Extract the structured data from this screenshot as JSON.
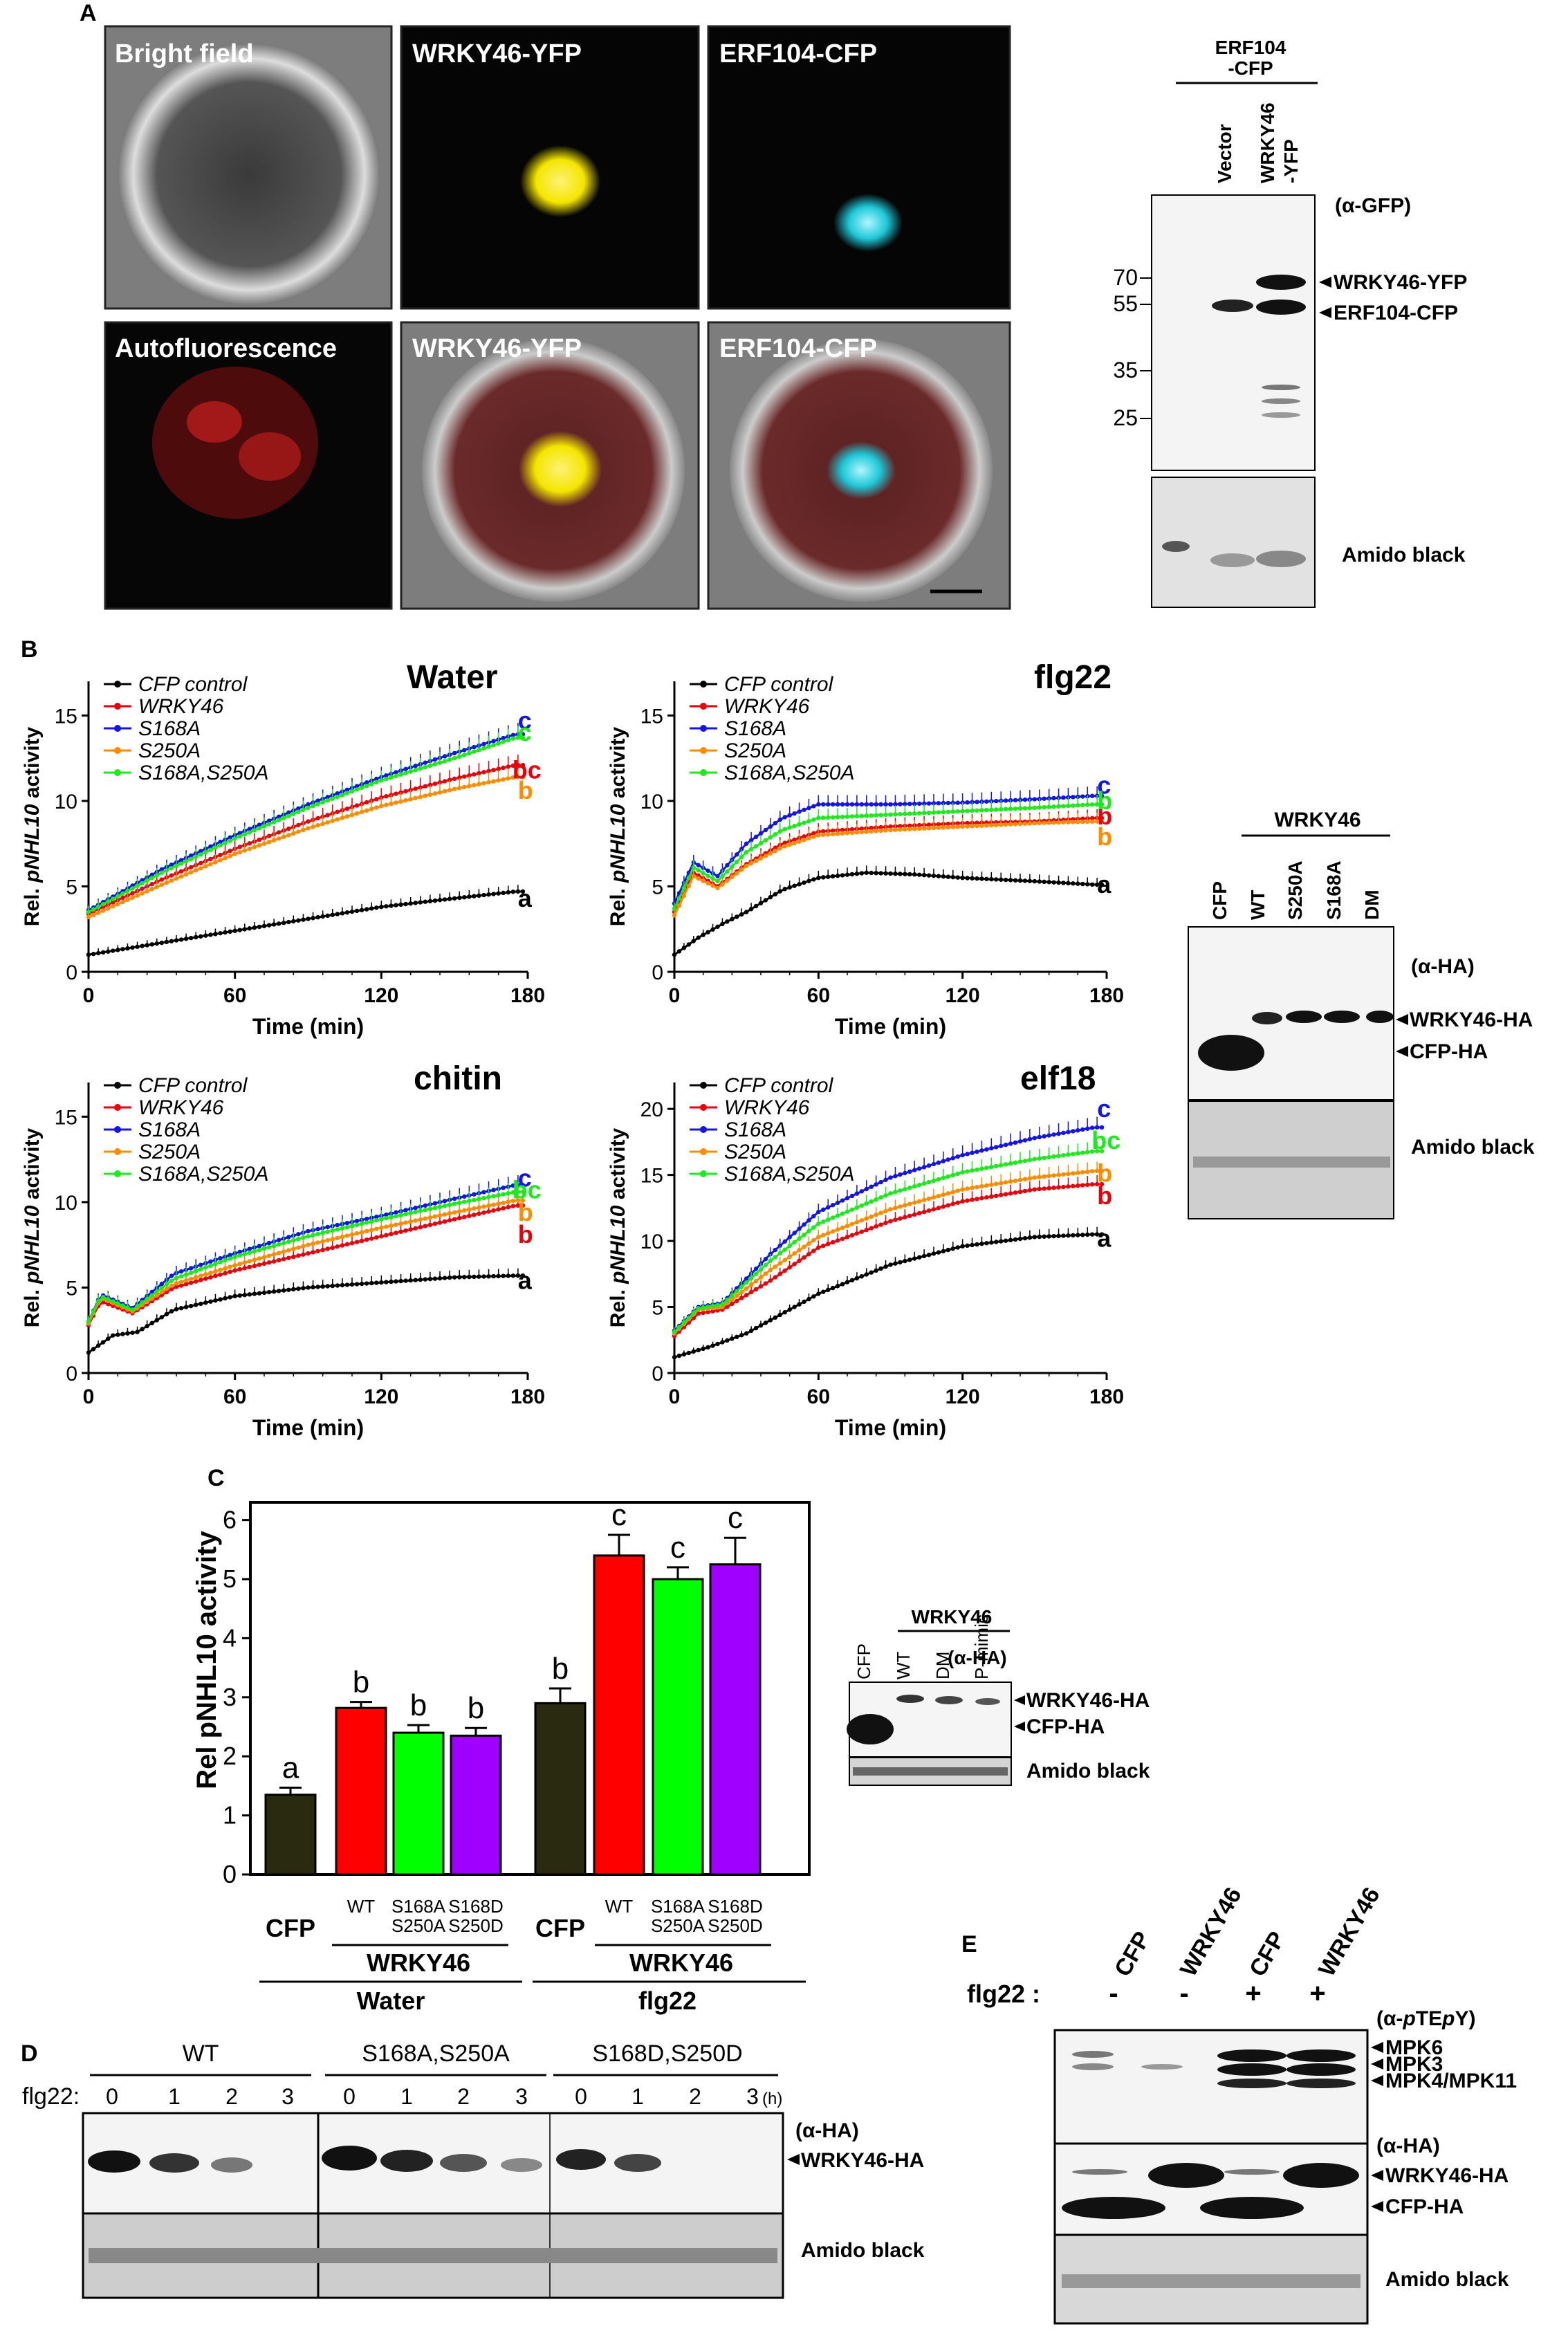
{
  "panel_labels": {
    "A": "A",
    "B": "B",
    "C": "C",
    "D": "D",
    "E": "E"
  },
  "panelA": {
    "micro_titles": [
      "Bright field",
      "WRKY46-YFP",
      "ERF104-CFP",
      "Autofluorescence",
      "WRKY46-YFP",
      "ERF104-CFP"
    ],
    "blot": {
      "header": [
        "ERF104",
        "-CFP"
      ],
      "lanes": [
        "Vector",
        "WRKY46",
        "-YFP"
      ],
      "antibody": "(α-GFP)",
      "markers": [
        "70",
        "55",
        "35",
        "25"
      ],
      "bands": [
        "WRKY46-YFP",
        "ERF104-CFP"
      ],
      "loading": "Amido black"
    },
    "colors": {
      "yfp": "#f5e600",
      "cfp": "#1fc8d8",
      "auto": "#c81e1e"
    }
  },
  "panelB": {
    "ylabel_prefix": "Rel. ",
    "ylabel_gene": "pNHL10",
    "ylabel_suffix": " activity",
    "xlabel": "Time (min)",
    "legend": [
      "CFP control",
      "WRKY46",
      "S168A",
      "S250A",
      "S168A,S250A"
    ],
    "colors": [
      "#000000",
      "#e8000b",
      "#1414e6",
      "#ff8c00",
      "#1ee81e"
    ],
    "blot": {
      "header": "WRKY46",
      "lanes": [
        "CFP",
        "WT",
        "S250A",
        "S168A",
        "DM"
      ],
      "antibody": "(α-HA)",
      "bands": [
        "WRKY46-HA",
        "CFP-HA"
      ],
      "loading": "Amido black"
    }
  },
  "chart_data": [
    {
      "type": "line",
      "title": "Water",
      "xlabel": "Time (min)",
      "ylabel": "Rel. pNHL10 activity",
      "xlim": [
        0,
        180
      ],
      "ylim": [
        0,
        17
      ],
      "xticks": [
        0,
        60,
        120,
        180
      ],
      "yticks": [
        0,
        5,
        10,
        15
      ],
      "series": [
        {
          "name": "CFP control",
          "values": [
            [
              0,
              1.0
            ],
            [
              30,
              1.7
            ],
            [
              60,
              2.4
            ],
            [
              90,
              3.1
            ],
            [
              120,
              3.8
            ],
            [
              150,
              4.3
            ],
            [
              175,
              4.7
            ]
          ],
          "letter": "a"
        },
        {
          "name": "WRKY46",
          "values": [
            [
              0,
              3.4
            ],
            [
              30,
              5.4
            ],
            [
              60,
              7.2
            ],
            [
              90,
              8.8
            ],
            [
              120,
              10.2
            ],
            [
              150,
              11.3
            ],
            [
              175,
              12.1
            ]
          ],
          "letter": "bc"
        },
        {
          "name": "S168A",
          "values": [
            [
              0,
              3.6
            ],
            [
              30,
              6.0
            ],
            [
              60,
              8.0
            ],
            [
              90,
              9.8
            ],
            [
              120,
              11.4
            ],
            [
              150,
              12.8
            ],
            [
              175,
              13.9
            ]
          ],
          "letter": "c"
        },
        {
          "name": "S250A",
          "values": [
            [
              0,
              3.2
            ],
            [
              30,
              5.1
            ],
            [
              60,
              6.9
            ],
            [
              90,
              8.4
            ],
            [
              120,
              9.7
            ],
            [
              150,
              10.7
            ],
            [
              175,
              11.4
            ]
          ],
          "letter": "b"
        },
        {
          "name": "S168A,S250A",
          "values": [
            [
              0,
              3.5
            ],
            [
              30,
              5.8
            ],
            [
              60,
              7.8
            ],
            [
              90,
              9.6
            ],
            [
              120,
              11.2
            ],
            [
              150,
              12.5
            ],
            [
              175,
              13.7
            ]
          ],
          "letter": "c"
        }
      ]
    },
    {
      "type": "line",
      "title": "flg22",
      "xlabel": "Time (min)",
      "ylabel": "Rel. pNHL10 activity",
      "xlim": [
        0,
        180
      ],
      "ylim": [
        0,
        17
      ],
      "xticks": [
        0,
        60,
        120,
        180
      ],
      "yticks": [
        0,
        5,
        10,
        15
      ],
      "series": [
        {
          "name": "CFP control",
          "values": [
            [
              0,
              1.0
            ],
            [
              10,
              2.0
            ],
            [
              20,
              2.8
            ],
            [
              30,
              3.5
            ],
            [
              45,
              4.8
            ],
            [
              60,
              5.5
            ],
            [
              80,
              5.8
            ],
            [
              100,
              5.7
            ],
            [
              120,
              5.5
            ],
            [
              150,
              5.3
            ],
            [
              175,
              5.1
            ]
          ],
          "letter": "a"
        },
        {
          "name": "WRKY46",
          "values": [
            [
              0,
              3.5
            ],
            [
              8,
              5.8
            ],
            [
              18,
              5.0
            ],
            [
              30,
              6.3
            ],
            [
              45,
              7.5
            ],
            [
              60,
              8.2
            ],
            [
              90,
              8.5
            ],
            [
              120,
              8.7
            ],
            [
              150,
              8.8
            ],
            [
              175,
              9.0
            ]
          ],
          "letter": "b"
        },
        {
          "name": "S168A",
          "values": [
            [
              0,
              4.0
            ],
            [
              8,
              6.4
            ],
            [
              18,
              5.6
            ],
            [
              30,
              7.5
            ],
            [
              45,
              9.0
            ],
            [
              60,
              9.8
            ],
            [
              90,
              9.8
            ],
            [
              120,
              9.9
            ],
            [
              150,
              10.1
            ],
            [
              175,
              10.3
            ]
          ],
          "letter": "c"
        },
        {
          "name": "S250A",
          "values": [
            [
              0,
              3.3
            ],
            [
              8,
              5.6
            ],
            [
              18,
              4.9
            ],
            [
              30,
              6.2
            ],
            [
              45,
              7.3
            ],
            [
              60,
              8.0
            ],
            [
              90,
              8.3
            ],
            [
              120,
              8.5
            ],
            [
              150,
              8.7
            ],
            [
              175,
              8.8
            ]
          ],
          "letter": "b"
        },
        {
          "name": "S168A,S250A",
          "values": [
            [
              0,
              3.7
            ],
            [
              8,
              6.1
            ],
            [
              18,
              5.3
            ],
            [
              30,
              7.0
            ],
            [
              45,
              8.3
            ],
            [
              60,
              9.0
            ],
            [
              90,
              9.2
            ],
            [
              120,
              9.4
            ],
            [
              150,
              9.6
            ],
            [
              175,
              9.8
            ]
          ],
          "letter": "b"
        }
      ]
    },
    {
      "type": "line",
      "title": "chitin",
      "xlabel": "Time (min)",
      "ylabel": "Rel. pNHL10 activity",
      "xlim": [
        0,
        180
      ],
      "ylim": [
        0,
        17
      ],
      "xticks": [
        0,
        60,
        120,
        180
      ],
      "yticks": [
        0,
        5,
        10,
        15
      ],
      "series": [
        {
          "name": "CFP control",
          "values": [
            [
              0,
              1.2
            ],
            [
              10,
              2.2
            ],
            [
              20,
              2.4
            ],
            [
              35,
              3.7
            ],
            [
              60,
              4.5
            ],
            [
              90,
              5.0
            ],
            [
              120,
              5.3
            ],
            [
              150,
              5.6
            ],
            [
              175,
              5.7
            ]
          ],
          "letter": "a"
        },
        {
          "name": "WRKY46",
          "values": [
            [
              0,
              2.8
            ],
            [
              5,
              4.2
            ],
            [
              18,
              3.5
            ],
            [
              35,
              5.0
            ],
            [
              60,
              6.0
            ],
            [
              90,
              7.0
            ],
            [
              120,
              8.0
            ],
            [
              150,
              9.0
            ],
            [
              175,
              9.8
            ]
          ],
          "letter": "b"
        },
        {
          "name": "S168A",
          "values": [
            [
              0,
              3.0
            ],
            [
              5,
              4.6
            ],
            [
              18,
              3.8
            ],
            [
              35,
              5.8
            ],
            [
              60,
              7.0
            ],
            [
              90,
              8.3
            ],
            [
              120,
              9.2
            ],
            [
              150,
              10.2
            ],
            [
              175,
              11.0
            ]
          ],
          "letter": "c"
        },
        {
          "name": "S250A",
          "values": [
            [
              0,
              2.9
            ],
            [
              5,
              4.4
            ],
            [
              18,
              3.6
            ],
            [
              35,
              5.2
            ],
            [
              60,
              6.3
            ],
            [
              90,
              7.5
            ],
            [
              120,
              8.5
            ],
            [
              150,
              9.4
            ],
            [
              175,
              10.1
            ]
          ],
          "letter": "b"
        },
        {
          "name": "S168A,S250A",
          "values": [
            [
              0,
              3.0
            ],
            [
              5,
              4.5
            ],
            [
              18,
              3.7
            ],
            [
              35,
              5.5
            ],
            [
              60,
              6.8
            ],
            [
              90,
              8.0
            ],
            [
              120,
              9.0
            ],
            [
              150,
              9.9
            ],
            [
              175,
              10.6
            ]
          ],
          "letter": "bc"
        }
      ]
    },
    {
      "type": "line",
      "title": "elf18",
      "xlabel": "Time (min)",
      "ylabel": "Rel. pNHL10 activity",
      "xlim": [
        0,
        180
      ],
      "ylim": [
        0,
        22
      ],
      "xticks": [
        0,
        60,
        120,
        180
      ],
      "yticks": [
        0,
        5,
        10,
        15,
        20
      ],
      "series": [
        {
          "name": "CFP control",
          "values": [
            [
              0,
              1.2
            ],
            [
              15,
              2.0
            ],
            [
              30,
              3.0
            ],
            [
              60,
              6.0
            ],
            [
              90,
              8.2
            ],
            [
              120,
              9.6
            ],
            [
              150,
              10.3
            ],
            [
              175,
              10.5
            ]
          ],
          "letter": "a"
        },
        {
          "name": "WRKY46",
          "values": [
            [
              0,
              2.8
            ],
            [
              10,
              4.5
            ],
            [
              20,
              4.8
            ],
            [
              40,
              7.0
            ],
            [
              60,
              9.5
            ],
            [
              90,
              11.5
            ],
            [
              120,
              13.0
            ],
            [
              150,
              13.9
            ],
            [
              175,
              14.3
            ]
          ],
          "letter": "b"
        },
        {
          "name": "S168A",
          "values": [
            [
              0,
              3.2
            ],
            [
              10,
              5.0
            ],
            [
              20,
              5.3
            ],
            [
              40,
              9.0
            ],
            [
              60,
              12.2
            ],
            [
              90,
              14.8
            ],
            [
              120,
              16.5
            ],
            [
              150,
              17.8
            ],
            [
              175,
              18.6
            ]
          ],
          "letter": "c"
        },
        {
          "name": "S250A",
          "values": [
            [
              0,
              3.0
            ],
            [
              10,
              4.8
            ],
            [
              20,
              5.0
            ],
            [
              40,
              7.8
            ],
            [
              60,
              10.3
            ],
            [
              90,
              12.4
            ],
            [
              120,
              13.9
            ],
            [
              150,
              14.8
            ],
            [
              175,
              15.3
            ]
          ],
          "letter": "b"
        },
        {
          "name": "S168A,S250A",
          "values": [
            [
              0,
              3.1
            ],
            [
              10,
              4.9
            ],
            [
              20,
              5.2
            ],
            [
              40,
              8.5
            ],
            [
              60,
              11.3
            ],
            [
              90,
              13.6
            ],
            [
              120,
              15.2
            ],
            [
              150,
              16.2
            ],
            [
              175,
              16.8
            ]
          ],
          "letter": "bc"
        }
      ]
    },
    {
      "type": "bar",
      "title": "",
      "ylabel": "Rel pNHL10 activity",
      "ylim": [
        0,
        6.3
      ],
      "yticks": [
        0,
        1,
        2,
        3,
        4,
        5,
        6
      ],
      "categories": [
        "CFP",
        "WT",
        "S168A S250A",
        "S168D S250D",
        "CFP",
        "WT",
        "S168A S250A",
        "S168D S250D"
      ],
      "values": [
        1.35,
        2.82,
        2.4,
        2.35,
        2.9,
        5.4,
        5.0,
        5.25
      ],
      "errors": [
        0.12,
        0.1,
        0.13,
        0.13,
        0.25,
        0.35,
        0.2,
        0.45
      ],
      "letters": [
        "a",
        "b",
        "b",
        "b",
        "b",
        "c",
        "c",
        "c"
      ],
      "colors": [
        "#292a10",
        "#ff0000",
        "#00ff00",
        "#a000ff",
        "#292a10",
        "#ff0000",
        "#00ff00",
        "#a000ff"
      ]
    }
  ],
  "panelC": {
    "cat_labels": [
      [
        "WT"
      ],
      [
        "S168A",
        "S250A"
      ],
      [
        "S168D",
        "S250D"
      ]
    ],
    "group_cfp": "CFP",
    "group_wrky": "WRKY46",
    "treatments": [
      "Water",
      "flg22"
    ],
    "blot": {
      "header": "WRKY46",
      "lanes": [
        "CFP",
        "WT",
        "DM",
        "P-mimic"
      ],
      "antibody": "(α-HA)",
      "bands": [
        "WRKY46-HA",
        "CFP-HA"
      ],
      "loading": "Amido black"
    }
  },
  "panelD": {
    "groups": [
      "WT",
      "S168A,S250A",
      "S168D,S250D"
    ],
    "row_label": "flg22:",
    "times": [
      "0",
      "1",
      "2",
      "3"
    ],
    "unit": "(h)",
    "antibody": "(α-HA)",
    "band": "WRKY46-HA",
    "loading": "Amido black"
  },
  "panelE": {
    "lanes": [
      "CFP",
      "WRKY46",
      "CFP",
      "WRKY46"
    ],
    "row_label": "flg22 :",
    "signs": [
      "-",
      "-",
      "+",
      "+"
    ],
    "antibody1_pre": "(α-",
    "antibody1_p1": "p",
    "antibody1_mid": "TE",
    "antibody1_p2": "p",
    "antibody1_end": "Y)",
    "bands1": [
      "MPK6",
      "MPK3",
      "MPK4/MPK11"
    ],
    "antibody2": "(α-HA)",
    "bands2": [
      "WRKY46-HA",
      "CFP-HA"
    ],
    "loading": "Amido black"
  }
}
